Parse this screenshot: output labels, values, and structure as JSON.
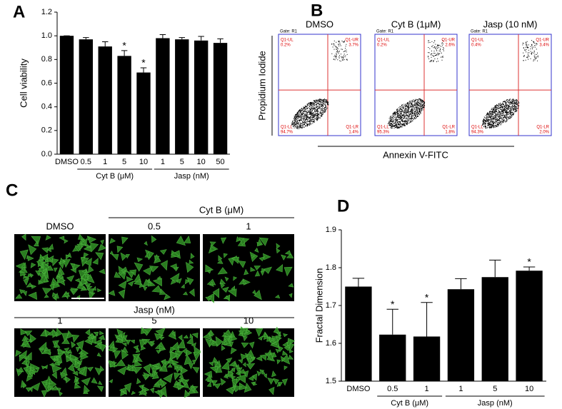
{
  "chart_data": [
    {
      "type": "bar",
      "panel_label": "A",
      "y_label": "Cell viability",
      "categories": [
        "DMSO",
        "0.5",
        "1",
        "5",
        "10",
        "1",
        "5",
        "10",
        "50"
      ],
      "values": [
        1.0,
        0.97,
        0.91,
        0.83,
        0.69,
        0.98,
        0.97,
        0.96,
        0.94
      ],
      "errors": [
        0,
        0.015,
        0.04,
        0.045,
        0.04,
        0.03,
        0.015,
        0.035,
        0.035
      ],
      "color": "#000000",
      "ylim": [
        0,
        1.2
      ],
      "yticks": [
        {
          "value": 0,
          "label": "0.0"
        },
        0.2,
        0.4,
        0.6,
        0.8,
        {
          "value": 1,
          "label": "1.0"
        },
        1.2
      ],
      "groups": [
        {
          "label": "Cyt B (μM)",
          "from": 1,
          "to": 4
        },
        {
          "label": "Jasp (nM)",
          "from": 5,
          "to": 8
        }
      ],
      "annotations": [
        {
          "category_index": 3,
          "text": "*"
        },
        {
          "category_index": 4,
          "text": "*"
        }
      ]
    },
    {
      "type": "bar",
      "panel_label": "D",
      "y_label": "Fractal Dimension",
      "categories": [
        "DMSO",
        "0.5",
        "1",
        "1",
        "5",
        "10"
      ],
      "values": [
        1.75,
        1.623,
        1.618,
        1.743,
        1.775,
        1.792
      ],
      "errors": [
        0.022,
        0.067,
        0.09,
        0.028,
        0.045,
        0.01
      ],
      "color": "#000000",
      "ylim": [
        1.5,
        1.9
      ],
      "yticks": [
        1.5,
        1.6,
        1.7,
        1.8,
        1.9
      ],
      "groups": [
        {
          "label": "Cyt B (μM)",
          "from": 1,
          "to": 2
        },
        {
          "label": "Jasp (nM)",
          "from": 3,
          "to": 5
        }
      ],
      "annotations": [
        {
          "category_index": 1,
          "text": "*"
        },
        {
          "category_index": 2,
          "text": "*"
        },
        {
          "category_index": 5,
          "text": "*"
        }
      ]
    }
  ],
  "panel_b": {
    "panel_label": "B",
    "y_label": "Propidium Iodide",
    "x_label": "Annexin V-FITC",
    "plots": [
      {
        "label": "DMSO",
        "gate": "Gate: R1",
        "quadrants": [
          {
            "name": "Q1-UL",
            "value": "0.2%"
          },
          {
            "name": "Q1-UR",
            "value": "3.7%"
          },
          {
            "name": "Q1-LL",
            "value": "94.7%"
          },
          {
            "name": "Q1-LR",
            "value": "1.4%"
          }
        ]
      },
      {
        "label": "Cyt B (1μM)",
        "gate": "Gate: R1",
        "quadrants": [
          {
            "name": "Q1-UL",
            "value": "0.2%"
          },
          {
            "name": "Q1-UR",
            "value": "2.6%"
          },
          {
            "name": "Q1-LL",
            "value": "95.3%"
          },
          {
            "name": "Q1-LR",
            "value": "1.8%"
          }
        ]
      },
      {
        "label": "Jasp (10 nM)",
        "gate": "Gate: R1",
        "quadrants": [
          {
            "name": "Q1-UL",
            "value": "0.4%"
          },
          {
            "name": "Q1-UR",
            "value": "3.4%"
          },
          {
            "name": "Q1-LL",
            "value": "94.3%"
          },
          {
            "name": "Q1-LR",
            "value": "2.0%"
          }
        ]
      }
    ]
  },
  "panel_c": {
    "panel_label": "C",
    "row1": {
      "group": "Cyt B (μM)",
      "images": [
        "DMSO",
        "0.5",
        "1"
      ]
    },
    "row2": {
      "group": "Jasp (nM)",
      "images": [
        "1",
        "5",
        "10"
      ]
    }
  }
}
